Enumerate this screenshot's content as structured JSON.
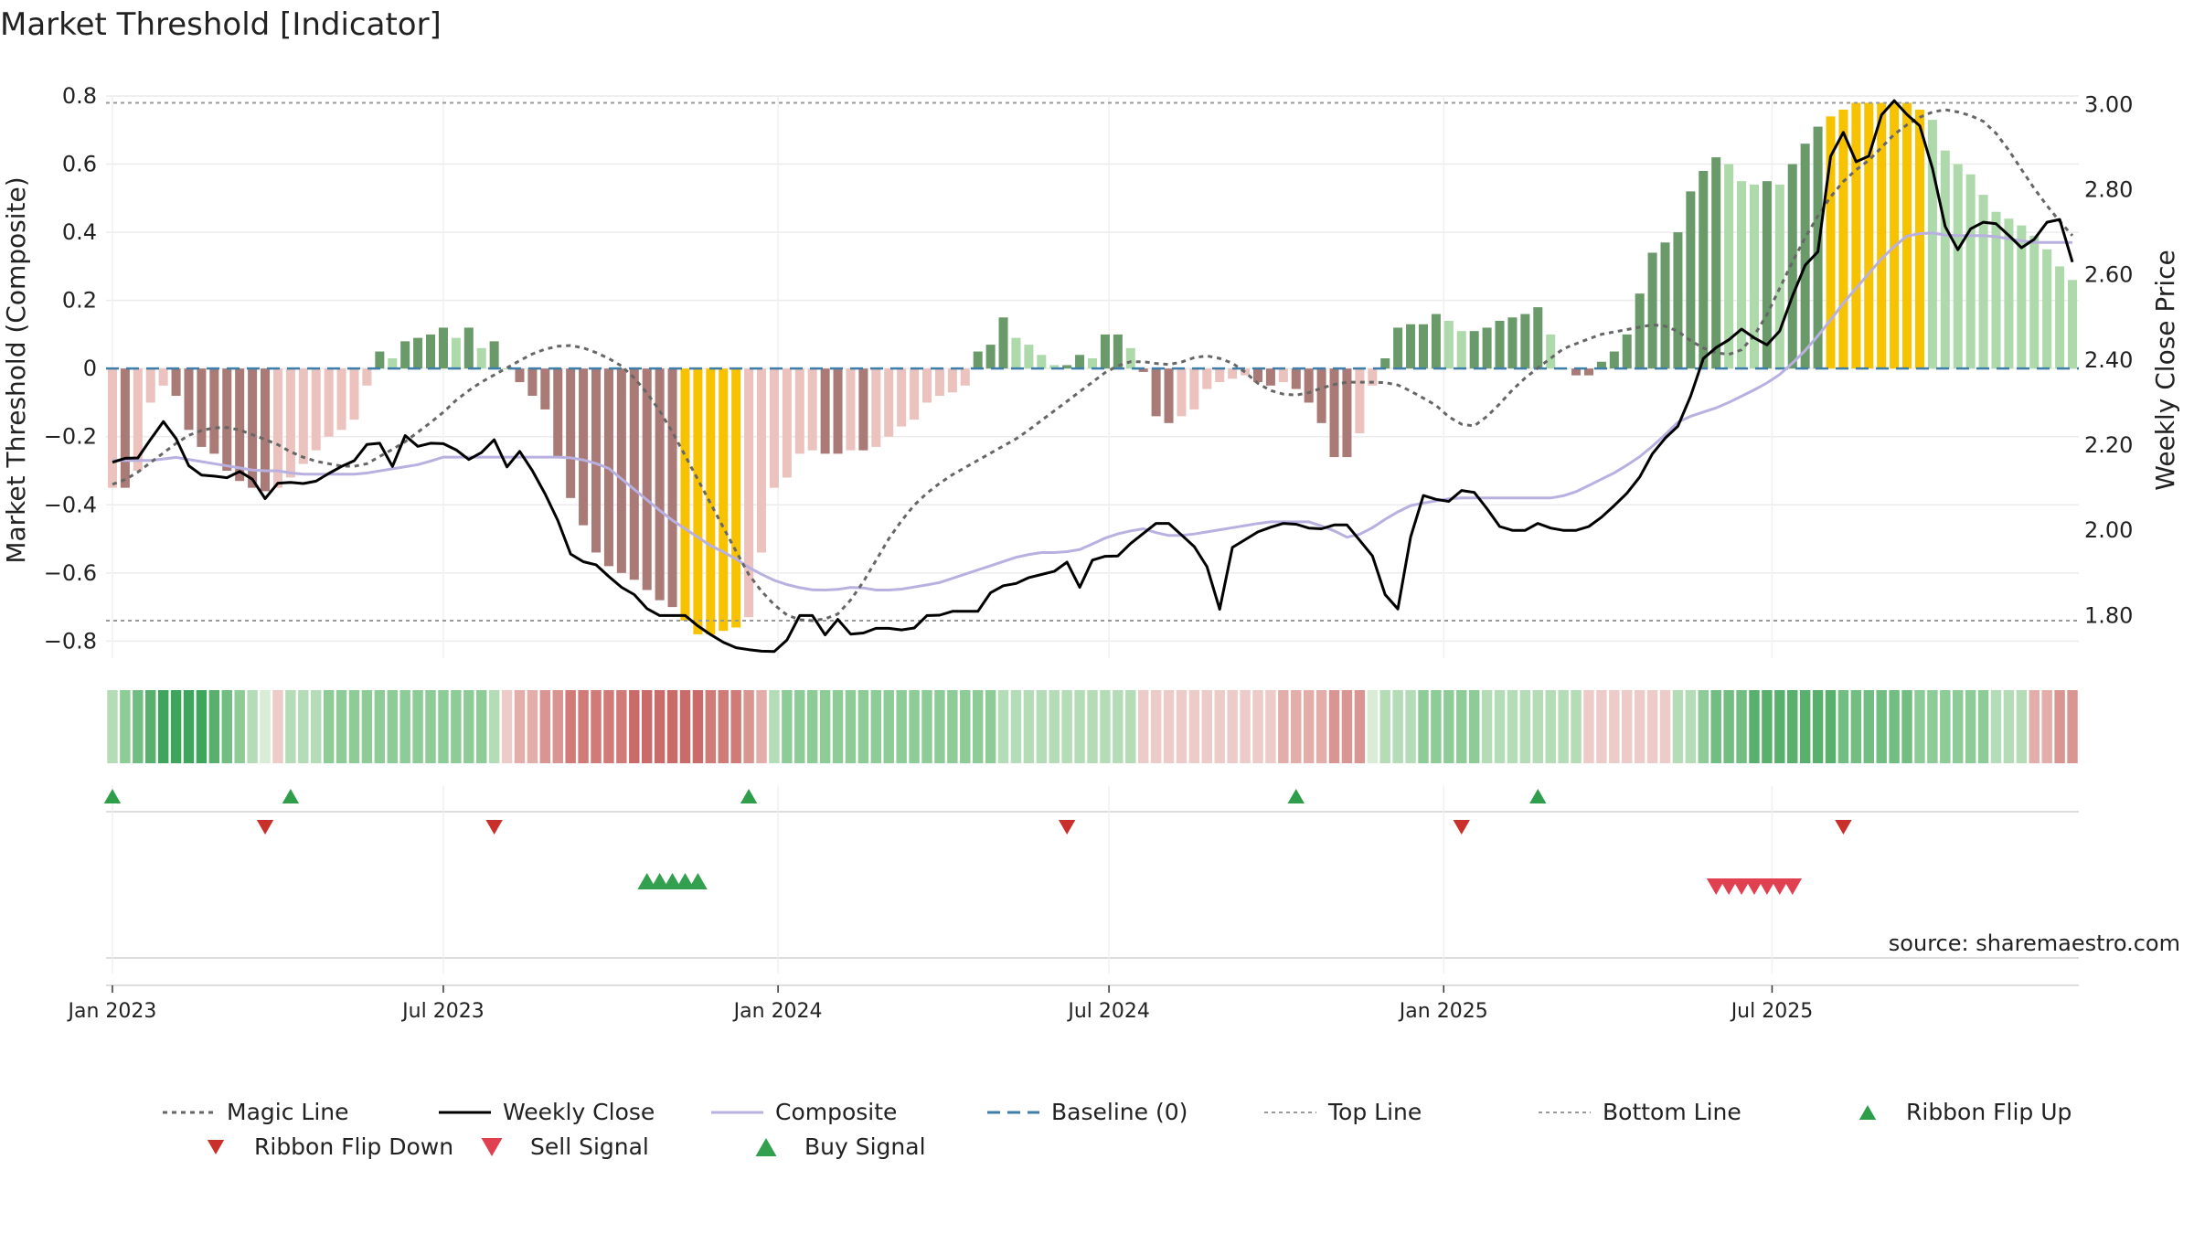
{
  "chart_data": {
    "type": "bar",
    "title": "Market Threshold [Indicator]",
    "ylabel_left": "Market Threshold (Composite)",
    "ylabel_right": "Weekly Close Price",
    "source": "source: sharemaestro.com",
    "ylim_left": [
      -0.85,
      0.8
    ],
    "ylim_right": [
      1.7,
      3.02
    ],
    "yticks_left": [
      {
        "v": 0.8,
        "label": "0.8"
      },
      {
        "v": 0.6,
        "label": "0.6"
      },
      {
        "v": 0.4,
        "label": "0.4"
      },
      {
        "v": 0.2,
        "label": "0.2"
      },
      {
        "v": 0,
        "label": "0"
      },
      {
        "v": -0.2,
        "label": "−0.2"
      },
      {
        "v": -0.4,
        "label": "−0.4"
      },
      {
        "v": -0.6,
        "label": "−0.6"
      },
      {
        "v": -0.8,
        "label": "−0.8"
      }
    ],
    "yticks_right": [
      {
        "v": 3.0,
        "label": "3.00"
      },
      {
        "v": 2.8,
        "label": "2.80"
      },
      {
        "v": 2.6,
        "label": "2.60"
      },
      {
        "v": 2.4,
        "label": "2.40"
      },
      {
        "v": 2.2,
        "label": "2.20"
      },
      {
        "v": 2.0,
        "label": "2.00"
      },
      {
        "v": 1.8,
        "label": "1.80"
      }
    ],
    "xticks": [
      {
        "week": 0,
        "label": "Jan 2023"
      },
      {
        "week": 26,
        "label": "Jul 2023"
      },
      {
        "week": 52.3,
        "label": "Jan 2024"
      },
      {
        "week": 78.3,
        "label": "Jul 2024"
      },
      {
        "week": 104.6,
        "label": "Jan 2025"
      },
      {
        "week": 130.4,
        "label": "Jul 2025"
      }
    ],
    "top_line": 0.78,
    "bottom_line": -0.74,
    "composite_bars": [
      -0.35,
      -0.35,
      -0.3,
      -0.1,
      -0.05,
      -0.08,
      -0.18,
      -0.23,
      -0.25,
      -0.3,
      -0.33,
      -0.35,
      -0.36,
      -0.35,
      -0.32,
      -0.28,
      -0.24,
      -0.2,
      -0.18,
      -0.15,
      -0.05,
      0.05,
      0.03,
      0.08,
      0.09,
      0.1,
      0.12,
      0.09,
      0.12,
      0.06,
      0.08,
      0,
      -0.04,
      -0.08,
      -0.12,
      -0.26,
      -0.38,
      -0.46,
      -0.54,
      -0.58,
      -0.6,
      -0.62,
      -0.65,
      -0.68,
      -0.7,
      -0.74,
      -0.78,
      -0.78,
      -0.77,
      -0.76,
      -0.73,
      -0.54,
      -0.35,
      -0.32,
      -0.25,
      -0.24,
      -0.25,
      -0.25,
      -0.24,
      -0.24,
      -0.23,
      -0.2,
      -0.17,
      -0.15,
      -0.1,
      -0.08,
      -0.07,
      -0.05,
      0.05,
      0.07,
      0.15,
      0.09,
      0.07,
      0.04,
      0.01,
      0.01,
      0.04,
      0.03,
      0.1,
      0.1,
      0.06,
      -0.01,
      -0.14,
      -0.16,
      -0.14,
      -0.12,
      -0.06,
      -0.04,
      -0.03,
      -0.02,
      -0.04,
      -0.05,
      -0.04,
      -0.06,
      -0.1,
      -0.16,
      -0.26,
      -0.26,
      -0.19,
      -0.05,
      0.03,
      0.12,
      0.13,
      0.13,
      0.16,
      0.14,
      0.11,
      0.11,
      0.12,
      0.14,
      0.15,
      0.16,
      0.18,
      0.1,
      0,
      -0.02,
      -0.02,
      0.02,
      0.05,
      0.1,
      0.22,
      0.34,
      0.37,
      0.4,
      0.52,
      0.58,
      0.62,
      0.6,
      0.55,
      0.54,
      0.55,
      0.54,
      0.6,
      0.66,
      0.71,
      0.74,
      0.76,
      0.78,
      0.78,
      0.78,
      0.78,
      0.78,
      0.76,
      0.73,
      0.64,
      0.6,
      0.57,
      0.51,
      0.46,
      0.44,
      0.42,
      0.39,
      0.35,
      0.3,
      0.26
    ],
    "composite_line": [
      -0.27,
      -0.27,
      -0.27,
      -0.26,
      -0.27,
      -0.28,
      -0.29,
      -0.3,
      -0.3,
      -0.31,
      -0.31,
      -0.31,
      -0.31,
      -0.3,
      -0.29,
      -0.28,
      -0.26,
      -0.26,
      -0.26,
      -0.26,
      -0.26,
      -0.26,
      -0.26,
      -0.27,
      -0.29,
      -0.34,
      -0.39,
      -0.44,
      -0.48,
      -0.52,
      -0.55,
      -0.59,
      -0.62,
      -0.64,
      -0.65,
      -0.65,
      -0.64,
      -0.65,
      -0.65,
      -0.64,
      -0.63,
      -0.61,
      -0.59,
      -0.57,
      -0.55,
      -0.54,
      -0.54,
      -0.53,
      -0.5,
      -0.48,
      -0.47,
      -0.49,
      -0.49,
      -0.48,
      -0.47,
      -0.46,
      -0.45,
      -0.45,
      -0.45,
      -0.47,
      -0.5,
      -0.47,
      -0.43,
      -0.4,
      -0.39,
      -0.38,
      -0.38,
      -0.38,
      -0.38,
      -0.38,
      -0.38,
      -0.36,
      -0.33,
      -0.3,
      -0.26,
      -0.21,
      -0.15,
      -0.13,
      -0.11,
      -0.08,
      -0.05,
      -0.01,
      0.05,
      0.12,
      0.2,
      0.27,
      0.34,
      0.39,
      0.4,
      0.39,
      0.39,
      0.39,
      0.38,
      0.37,
      0.37,
      0.37
    ],
    "magic_line": [
      -0.34,
      -0.32,
      -0.28,
      -0.24,
      -0.2,
      -0.18,
      -0.17,
      -0.18,
      -0.2,
      -0.22,
      -0.25,
      -0.27,
      -0.28,
      -0.29,
      -0.28,
      -0.25,
      -0.22,
      -0.18,
      -0.14,
      -0.09,
      -0.05,
      -0.02,
      0.01,
      0.04,
      0.06,
      0.07,
      0.06,
      0.04,
      0.01,
      -0.04,
      -0.11,
      -0.2,
      -0.3,
      -0.4,
      -0.5,
      -0.6,
      -0.67,
      -0.72,
      -0.74,
      -0.74,
      -0.72,
      -0.66,
      -0.57,
      -0.48,
      -0.41,
      -0.36,
      -0.32,
      -0.29,
      -0.26,
      -0.23,
      -0.2,
      -0.16,
      -0.12,
      -0.08,
      -0.04,
      0,
      0.02,
      0.02,
      0.01,
      0.02,
      0.04,
      0.03,
      0.01,
      -0.04,
      -0.07,
      -0.08,
      -0.07,
      -0.05,
      -0.04,
      -0.04,
      -0.04,
      -0.05,
      -0.08,
      -0.11,
      -0.16,
      -0.17,
      -0.13,
      -0.07,
      -0.02,
      0.02,
      0.06,
      0.08,
      0.1,
      0.11,
      0.12,
      0.13,
      0.12,
      0.08,
      0.05,
      0.04,
      0.06,
      0.14,
      0.25,
      0.36,
      0.45,
      0.53,
      0.58,
      0.62,
      0.68,
      0.72,
      0.75,
      0.76,
      0.75,
      0.73,
      0.68,
      0.6,
      0.52,
      0.45,
      0.39
    ],
    "weekly_close": [
      2.16,
      2.17,
      2.17,
      2.23,
      2.27,
      2.17,
      2.13,
      2.13,
      2.12,
      2.14,
      2.12,
      2.07,
      2.12,
      2.11,
      2.11,
      2.12,
      2.15,
      2.15,
      2.2,
      2.21,
      2.15,
      2.23,
      2.19,
      2.21,
      2.2,
      2.18,
      2.15,
      2.24,
      2.14,
      2.19,
      2.14,
      2.08,
      2.01,
      1.92,
      1.93,
      1.91,
      1.87,
      1.86,
      1.82,
      1.8,
      1.8,
      1.8,
      1.77,
      1.75,
      1.73,
      1.72,
      1.72,
      1.71,
      1.73,
      1.8,
      1.8,
      1.75,
      1.8,
      1.74,
      1.77,
      1.77,
      1.77,
      1.76,
      1.8,
      1.8,
      1.81,
      1.81,
      1.81,
      1.87,
      1.87,
      1.88,
      1.9,
      1.89,
      1.94,
      1.86,
      1.93,
      1.94,
      1.94,
      1.98,
      2.0,
      2.03,
      2.0,
      1.97,
      1.94,
      1.8,
      1.96,
      1.98,
      2.0,
      2.01,
      2.02,
      2.01,
      2.0,
      2.01,
      2.02,
      1.98,
      1.94,
      1.84,
      1.81,
      2.05,
      2.1,
      2.05,
      2.09,
      2.1,
      2.06,
      2.01,
      2.0,
      2.0,
      2.02,
      2.0,
      2.0,
      2.0,
      2.02,
      2.05,
      2.08,
      2.12,
      2.18,
      2.22,
      2.25,
      2.34,
      2.44,
      2.42,
      2.48,
      2.46,
      2.43,
      2.46,
      2.55,
      2.63,
      2.66,
      2.96,
      2.92,
      2.82,
      2.95,
      3.02,
      2.98,
      2.96,
      2.85,
      2.7,
      2.65,
      2.73,
      2.72,
      2.72,
      2.66,
      2.67,
      2.72,
      2.74,
      2.63
    ],
    "ribbon_levels": [
      1,
      2,
      3,
      4,
      5,
      5,
      5,
      5,
      4,
      3,
      2,
      1,
      0,
      -1,
      1,
      1,
      1,
      2,
      2,
      2,
      2,
      2,
      2,
      2,
      2,
      2,
      2,
      2,
      2,
      2,
      1,
      -1,
      -2,
      -2,
      -3,
      -3,
      -4,
      -4,
      -4,
      -4,
      -4,
      -5,
      -5,
      -5,
      -5,
      -5,
      -5,
      -4,
      -4,
      -4,
      -3,
      -2,
      1,
      2,
      2,
      2,
      2,
      2,
      2,
      2,
      2,
      2,
      2,
      2,
      2,
      2,
      2,
      2,
      2,
      2,
      1,
      1,
      1,
      1,
      1,
      1,
      1,
      1,
      1,
      1,
      1,
      -1,
      -1,
      -1,
      -1,
      -1,
      -1,
      -1,
      -1,
      -1,
      -1,
      -1,
      -2,
      -2,
      -2,
      -2,
      -3,
      -3,
      -3,
      0,
      1,
      1,
      1,
      2,
      2,
      2,
      2,
      2,
      1,
      1,
      1,
      1,
      1,
      1,
      1,
      1,
      -1,
      -1,
      -1,
      -1,
      -1,
      -1,
      -1,
      1,
      1,
      2,
      3,
      3,
      3,
      4,
      4,
      4,
      4,
      4,
      4,
      4,
      3,
      3,
      3,
      3,
      3,
      3,
      2,
      2,
      2,
      2,
      2,
      2,
      1,
      1,
      1,
      -2,
      -2,
      -3,
      -3,
      -3,
      -3,
      -3,
      -3
    ],
    "ribbon_flip_up": [
      0,
      14,
      50,
      93,
      112
    ],
    "ribbon_flip_down": [
      12,
      30,
      75,
      106,
      136
    ],
    "buy_signal": [
      42,
      43,
      44,
      45,
      46
    ],
    "sell_signal": [
      126,
      127,
      128,
      129,
      130,
      131,
      132
    ],
    "series": [
      {
        "name": "Magic Line",
        "color": "#666666"
      },
      {
        "name": "Weekly Close",
        "color": "#000000"
      },
      {
        "name": "Composite",
        "color": "#b8b0e0"
      },
      {
        "name": "Baseline (0)",
        "color": "#3f7ea8"
      },
      {
        "name": "Top Line",
        "color": "#999999"
      },
      {
        "name": "Bottom Line",
        "color": "#999999"
      },
      {
        "name": "Ribbon Flip Up",
        "color": "#2e9e4a"
      },
      {
        "name": "Ribbon Flip Down",
        "color": "#c9302c"
      },
      {
        "name": "Sell Signal",
        "color": "#e0404f"
      },
      {
        "name": "Buy Signal",
        "color": "#33a050"
      }
    ],
    "legend_position": "bottom"
  }
}
